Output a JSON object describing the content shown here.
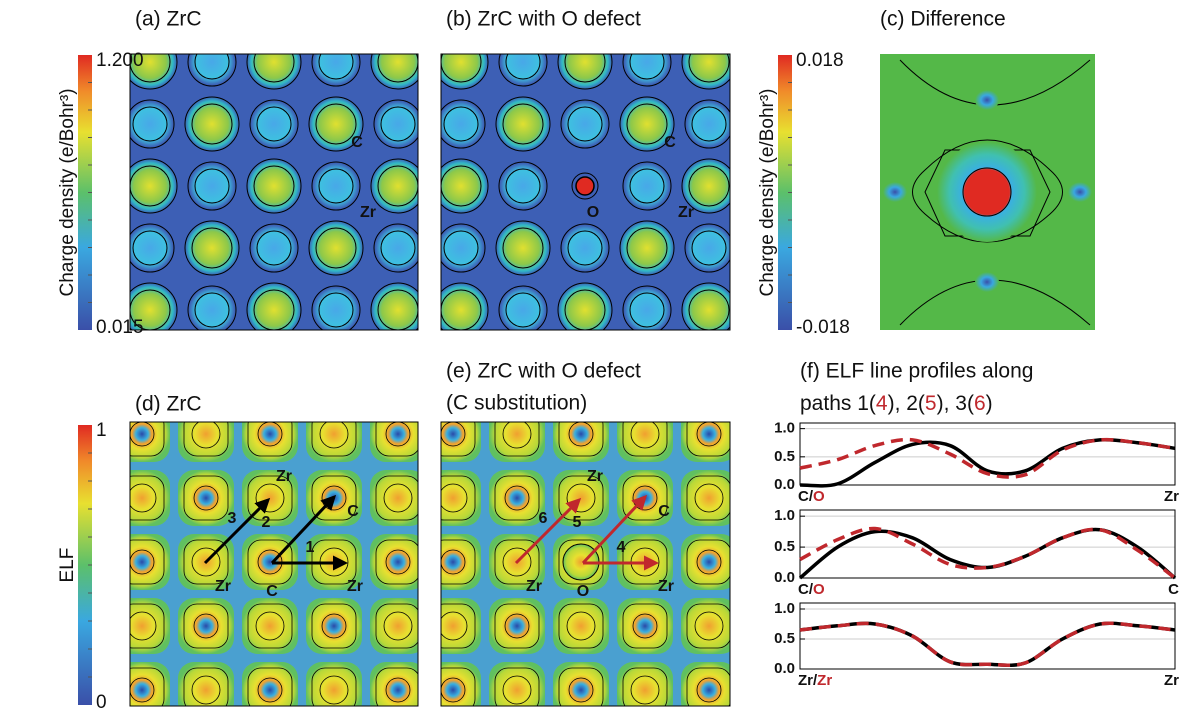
{
  "panels": {
    "a": {
      "title": "(a) ZrC",
      "labels": [
        "C",
        "Zr"
      ]
    },
    "b": {
      "title": "(b) ZrC with O defect",
      "labels": [
        "C",
        "O",
        "Zr"
      ]
    },
    "c": {
      "title": "(c) Difference"
    },
    "d": {
      "title": "(d) ZrC",
      "labels": [
        "Zr",
        "C",
        "Zr",
        "C",
        "Zr"
      ],
      "arrows": [
        "3",
        "2",
        "1"
      ]
    },
    "e": {
      "title": [
        "(e) ZrC with O defect",
        "(C substitution)"
      ],
      "labels": [
        "Zr",
        "C",
        "Zr",
        "O",
        "Zr"
      ],
      "arrows": [
        "6",
        "5",
        "4"
      ]
    },
    "f": {
      "title": [
        "(f) ELF line profiles along",
        [
          "paths 1(",
          "4",
          "), 2(",
          "5",
          "), 3(",
          "6",
          ")"
        ]
      ]
    }
  },
  "colorbars": [
    {
      "label": "Charge density (e/Bohr³)",
      "max": "1.200",
      "min": "0.015"
    },
    {
      "label": "Charge density (e/Bohr³)",
      "max": "0.018",
      "min": "-0.018"
    },
    {
      "label": "ELF",
      "max": "1",
      "min": "0"
    }
  ],
  "chart_data": [
    {
      "type": "line",
      "x": [
        0,
        0.1,
        0.2,
        0.3,
        0.4,
        0.5,
        0.6,
        0.7,
        0.8,
        0.9,
        1
      ],
      "xlim": [
        0,
        1
      ],
      "ylim": [
        0,
        1.1
      ],
      "yticks": [
        {
          "value": 0,
          "label": "0.0"
        },
        {
          "value": 0.5,
          "label": "0.5"
        },
        {
          "value": 1,
          "label": "1.0"
        }
      ],
      "grid": true,
      "series": [
        {
          "color": "#000000",
          "style": "solid",
          "values": [
            0,
            0.02,
            0.4,
            0.72,
            0.7,
            0.25,
            0.25,
            0.65,
            0.8,
            0.75,
            0.65
          ]
        },
        {
          "color": "#c0282d",
          "style": "dashed",
          "values": [
            0.3,
            0.45,
            0.7,
            0.8,
            0.55,
            0.2,
            0.18,
            0.62,
            0.8,
            0.75,
            0.65
          ]
        }
      ],
      "x_start": [
        "C/",
        "O"
      ],
      "x_end": "Zr"
    },
    {
      "type": "line",
      "x": [
        0,
        0.1,
        0.2,
        0.3,
        0.4,
        0.5,
        0.6,
        0.7,
        0.8,
        0.9,
        1
      ],
      "xlim": [
        0,
        1
      ],
      "ylim": [
        0,
        1.1
      ],
      "yticks": [
        {
          "value": 0,
          "label": "0.0"
        },
        {
          "value": 0.5,
          "label": "0.5"
        },
        {
          "value": 1,
          "label": "1.0"
        }
      ],
      "grid": true,
      "series": [
        {
          "color": "#000000",
          "style": "solid",
          "values": [
            0,
            0.5,
            0.75,
            0.65,
            0.3,
            0.17,
            0.35,
            0.65,
            0.78,
            0.5,
            0
          ]
        },
        {
          "color": "#c0282d",
          "style": "dashed",
          "values": [
            0.3,
            0.62,
            0.8,
            0.55,
            0.22,
            0.17,
            0.35,
            0.65,
            0.78,
            0.45,
            0
          ]
        }
      ],
      "x_start": [
        "C/",
        "O"
      ],
      "x_end": "C"
    },
    {
      "type": "line",
      "x": [
        0,
        0.1,
        0.2,
        0.3,
        0.4,
        0.5,
        0.6,
        0.7,
        0.8,
        0.9,
        1
      ],
      "xlim": [
        0,
        1
      ],
      "ylim": [
        0,
        1.1
      ],
      "yticks": [
        {
          "value": 0,
          "label": "0.0"
        },
        {
          "value": 0.5,
          "label": "0.5"
        },
        {
          "value": 1,
          "label": "1.0"
        }
      ],
      "grid": true,
      "series": [
        {
          "color": "#000000",
          "style": "solid",
          "values": [
            0.65,
            0.72,
            0.75,
            0.55,
            0.12,
            0.08,
            0.1,
            0.5,
            0.75,
            0.72,
            0.65
          ]
        },
        {
          "color": "#c0282d",
          "style": "dashed",
          "values": [
            0.65,
            0.72,
            0.75,
            0.55,
            0.12,
            0.08,
            0.1,
            0.5,
            0.75,
            0.72,
            0.65
          ]
        }
      ],
      "x_start": [
        "Zr/",
        "Zr"
      ],
      "x_end": "Zr"
    }
  ]
}
